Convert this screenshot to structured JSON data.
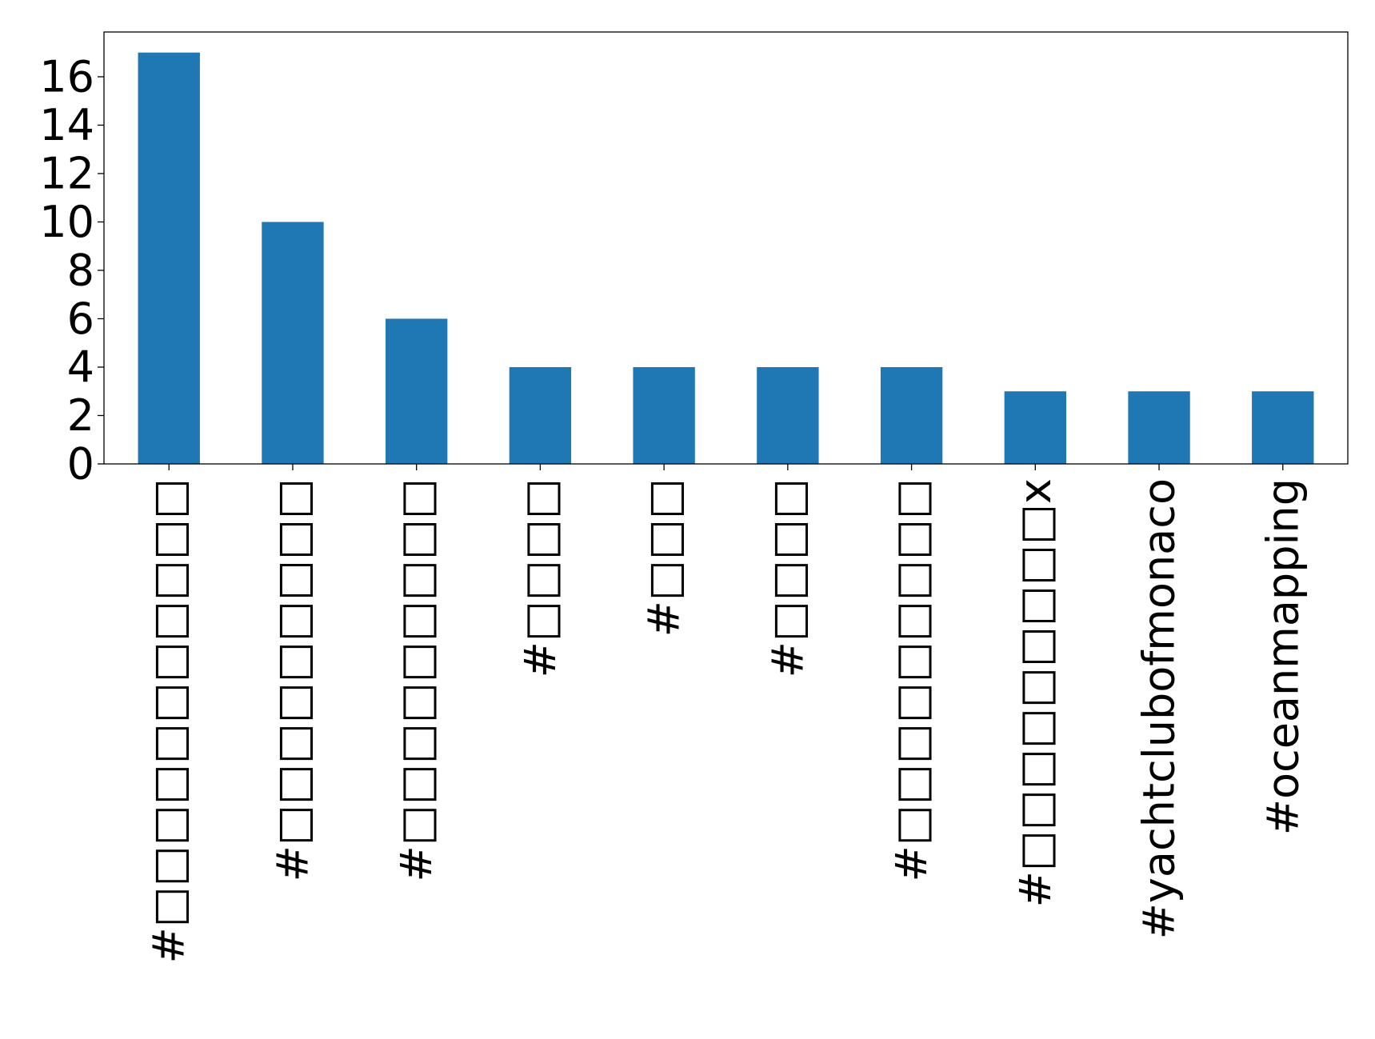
{
  "chart_data": {
    "type": "bar",
    "categories": [
      "#□□□□□□□□□□□",
      "#□□□□□□□□□",
      "#□□□□□□□□□",
      "#□□□□",
      "#□□□",
      "#□□□□",
      "#□□□□□□□□□",
      "#□□□□□□□□□x",
      "#yachtclubofmonaco",
      "#oceanmapping"
    ],
    "values": [
      17,
      10,
      6,
      4,
      4,
      4,
      4,
      3,
      3,
      3
    ],
    "y_ticks": [
      "0",
      "2",
      "4",
      "6",
      "8",
      "10",
      "12",
      "14",
      "16"
    ],
    "ylim": [
      0,
      17.85
    ],
    "title": "",
    "xlabel": "",
    "ylabel": "",
    "grid": false,
    "legend": "none",
    "bar_color": "#1f77b4",
    "axis_color": "#000000"
  }
}
